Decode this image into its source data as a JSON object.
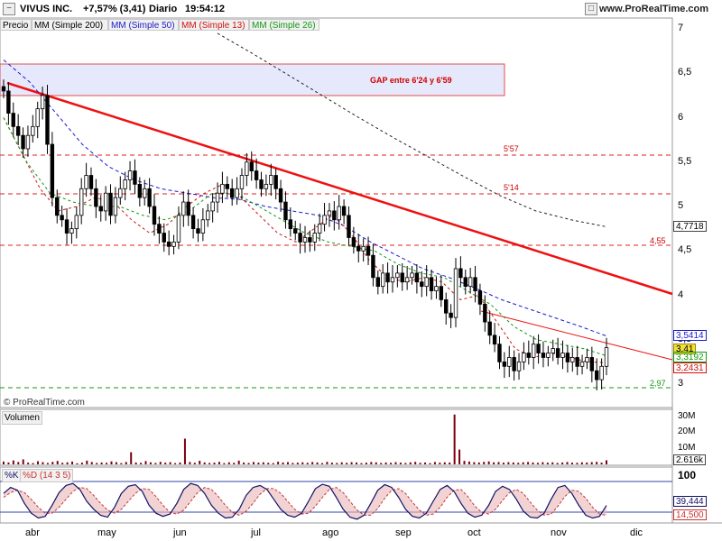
{
  "header": {
    "title": "VIVUS INC.",
    "change": "+7,57% (3,41)",
    "period": "Diario",
    "time": "19:54:12",
    "site": "www.ProRealTime.com"
  },
  "legend": {
    "price": "Precio",
    "mm200": "MM (Simple 200)",
    "mm50": "MM (Simple 50)",
    "mm13": "MM (Simple 13)",
    "mm26": "MM (Simple 26)"
  },
  "colors": {
    "mm200": "#222222",
    "mm50": "#1a1acc",
    "mm13": "#d01010",
    "mm26": "#119911",
    "trendline": "#ee1111",
    "volume": "#7a0010",
    "stoch_k": "#111166",
    "stoch_d": "#cc3333"
  },
  "watermark": "© ProRealTime.com",
  "volume_panel": {
    "label": "Volumen",
    "last_value": "2.616k"
  },
  "stoch_panel": {
    "label_k": "%K",
    "label_d": "%D (14 3 5)",
    "value_k": "39,444",
    "value_d": "14,500"
  },
  "annotations": {
    "gap": "GAP entre 6'24 y 6'59",
    "lvl_557": "5'57",
    "lvl_514": "5'14",
    "lvl_455": "4,55",
    "lvl_297": "2,97"
  },
  "price_tags": {
    "mm200": "4,7718",
    "mm50": "3,5414",
    "last": "3,41",
    "mm26": "3,3192",
    "mm13": "3,2431"
  },
  "chart_data": [
    {
      "type": "candlestick",
      "title": "VIVUS INC.",
      "xlabel": "",
      "ylabel": "",
      "ylim": [
        2.9,
        7.0
      ],
      "y_ticks": [
        "7",
        "6,5",
        "6",
        "5,5",
        "5",
        "4,5",
        "4",
        "3,5",
        "3"
      ],
      "y_tick_values": [
        7,
        6.5,
        6,
        5.5,
        5,
        4.5,
        4,
        3.5,
        3
      ],
      "x_ticks": [
        "abr",
        "may",
        "jun",
        "jul",
        "ago",
        "sep",
        "oct",
        "nov",
        "dic"
      ],
      "close": [
        6.3,
        6.05,
        5.9,
        5.8,
        5.65,
        5.8,
        5.9,
        6.1,
        6.25,
        5.7,
        5.1,
        4.9,
        4.85,
        4.7,
        4.75,
        4.9,
        5.2,
        5.35,
        5.2,
        5.0,
        4.95,
        5.15,
        4.9,
        5.1,
        5.2,
        5.3,
        5.4,
        5.25,
        5.1,
        5.2,
        5.0,
        4.8,
        4.7,
        4.6,
        4.55,
        4.6,
        4.9,
        5.05,
        4.9,
        4.75,
        4.7,
        4.85,
        4.95,
        5.05,
        5.15,
        5.25,
        5.2,
        5.1,
        5.2,
        5.35,
        5.5,
        5.4,
        5.3,
        5.2,
        5.25,
        5.35,
        5.2,
        5.05,
        4.85,
        4.75,
        4.7,
        4.6,
        4.65,
        4.6,
        4.7,
        4.8,
        4.9,
        4.95,
        4.85,
        5.0,
        4.9,
        4.65,
        4.55,
        4.5,
        4.55,
        4.45,
        4.2,
        4.1,
        4.25,
        4.15,
        4.2,
        4.25,
        4.15,
        4.2,
        4.25,
        4.15,
        4.1,
        4.2,
        4.05,
        4.1,
        3.95,
        3.8,
        3.75,
        4.3,
        4.2,
        4.1,
        4.2,
        4.05,
        3.9,
        3.7,
        3.55,
        3.45,
        3.25,
        3.2,
        3.3,
        3.15,
        3.25,
        3.35,
        3.3,
        3.45,
        3.35,
        3.3,
        3.35,
        3.4,
        3.3,
        3.35,
        3.25,
        3.3,
        3.2,
        3.25,
        3.3,
        3.15,
        3.05,
        3.2,
        3.41
      ],
      "series": [
        {
          "name": "MM (Simple 200)",
          "start_index": 44,
          "values": [
            6.95,
            6.72,
            6.48,
            6.24,
            6.0,
            5.77,
            5.55,
            5.33,
            5.12,
            4.95,
            4.85,
            4.7718
          ]
        },
        {
          "name": "MM (Simple 50)",
          "values": [
            6.65,
            6.4,
            6.05,
            5.7,
            5.45,
            5.3,
            5.2,
            5.15,
            5.1,
            5.08,
            5.0,
            4.95,
            4.9,
            4.78,
            4.6,
            4.45,
            4.3,
            4.2,
            4.08,
            3.95,
            3.85,
            3.75,
            3.65,
            3.5414
          ]
        },
        {
          "name": "MM (Simple 13)",
          "values": [
            6.0,
            5.6,
            5.2,
            4.95,
            5.0,
            5.1,
            5.05,
            4.85,
            4.7,
            4.8,
            5.0,
            5.15,
            5.25,
            5.1,
            4.9,
            4.7,
            4.6,
            4.75,
            4.9,
            4.7,
            4.4,
            4.2,
            4.15,
            4.2,
            4.15,
            3.95,
            4.0,
            3.7,
            3.4,
            3.3,
            3.35,
            3.3,
            3.25,
            3.2431
          ]
        },
        {
          "name": "MM (Simple 26)",
          "values": [
            6.0,
            5.5,
            5.15,
            5.05,
            5.0,
            5.0,
            4.9,
            4.85,
            4.95,
            5.15,
            5.15,
            5.0,
            4.85,
            4.7,
            4.6,
            4.55,
            4.5,
            4.35,
            4.25,
            4.2,
            4.05,
            3.9,
            3.65,
            3.5,
            3.45,
            3.4,
            3.3192
          ]
        }
      ]
    },
    {
      "type": "bar",
      "title": "Volumen",
      "y_ticks": [
        "30M",
        "20M",
        "10M"
      ],
      "y_tick_values": [
        30,
        20,
        10
      ],
      "ylim": [
        0,
        33
      ],
      "values": [
        1.8,
        1.2,
        2.5,
        1.5,
        3.2,
        1.1,
        0.8,
        2.0,
        1.4,
        0.9,
        1.6,
        2.2,
        1.0,
        1.3,
        1.8,
        0.7,
        1.1,
        2.4,
        1.5,
        0.9,
        1.2,
        1.0,
        1.9,
        1.4,
        0.8,
        1.5,
        7.8,
        1.2,
        1.0,
        2.1,
        1.3,
        0.9,
        1.6,
        1.1,
        1.4,
        0.8,
        1.2,
        16.5,
        1.5,
        1.0,
        2.3,
        1.2,
        0.9,
        1.1,
        1.6,
        0.8,
        1.3,
        1.0,
        2.4,
        1.2,
        0.9,
        1.5,
        1.1,
        1.3,
        1.0,
        0.8,
        1.7,
        1.2,
        1.4,
        0.9,
        1.1,
        1.3,
        1.0,
        1.5,
        1.2,
        0.8,
        1.6,
        1.1,
        0.9,
        1.3,
        1.0,
        1.4,
        1.2,
        0.8,
        1.1,
        1.5,
        1.3,
        0.9,
        1.2,
        1.0,
        1.4,
        1.1,
        0.9,
        1.3,
        1.6,
        1.0,
        1.2,
        0.8,
        1.5,
        1.1,
        1.3,
        1.2,
        32.0,
        9.5,
        2.2,
        1.8,
        1.4,
        1.2,
        1.6,
        1.9,
        1.3,
        1.5,
        1.1,
        1.4,
        1.2,
        1.0,
        1.3,
        1.5,
        1.2,
        1.0,
        1.4,
        1.1,
        1.3,
        0.9,
        1.2,
        1.5,
        1.1,
        1.0,
        1.3,
        1.2,
        1.4,
        1.6,
        1.1,
        2.616
      ]
    },
    {
      "type": "line",
      "title": "%K %D (14 3 5)",
      "y_ticks": [
        "100"
      ],
      "y_tick_values": [
        100
      ],
      "ylim": [
        0,
        100
      ],
      "series": [
        {
          "name": "%K",
          "values": [
            70,
            85,
            78,
            45,
            20,
            8,
            12,
            40,
            72,
            90,
            95,
            80,
            50,
            30,
            15,
            10,
            35,
            70,
            88,
            92,
            75,
            40,
            20,
            12,
            18,
            45,
            80,
            95,
            90,
            70,
            40,
            20,
            8,
            10,
            30,
            65,
            85,
            90,
            80,
            55,
            30,
            15,
            10,
            20,
            50,
            82,
            93,
            88,
            60,
            30,
            10,
            5,
            15,
            45,
            78,
            92,
            85,
            60,
            30,
            12,
            8,
            20,
            50,
            80,
            90,
            75,
            45,
            20,
            10,
            15,
            40,
            75,
            88,
            80,
            55,
            25,
            10,
            8,
            20,
            55,
            85,
            90,
            70,
            40,
            15,
            8,
            12,
            39.444
          ]
        },
        {
          "name": "%D (14 3 5)",
          "values": [
            60,
            72,
            78,
            72,
            55,
            35,
            20,
            20,
            35,
            55,
            75,
            85,
            82,
            65,
            45,
            28,
            20,
            30,
            50,
            70,
            82,
            80,
            62,
            40,
            22,
            18,
            28,
            50,
            72,
            85,
            80,
            62,
            40,
            22,
            15,
            25,
            45,
            68,
            82,
            82,
            70,
            50,
            30,
            18,
            20,
            38,
            60,
            80,
            85,
            72,
            50,
            28,
            15,
            15,
            32,
            58,
            78,
            82,
            70,
            48,
            28,
            15,
            18,
            35,
            60,
            78,
            80,
            62,
            38,
            22,
            18,
            30,
            52,
            72,
            80,
            70,
            48,
            28,
            15,
            18,
            38,
            62,
            78,
            75,
            58,
            35,
            18,
            14.5
          ]
        }
      ]
    }
  ]
}
